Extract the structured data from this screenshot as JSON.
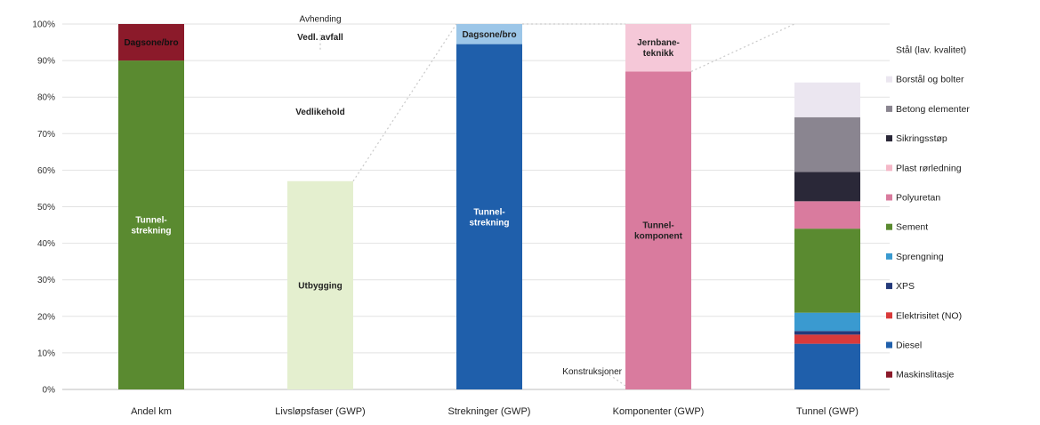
{
  "chart_data": {
    "type": "bar",
    "categories": [
      "Andel km",
      "Livsløpsfaser (GWP)",
      "Strekninger (GWP)",
      "Komponenter (GWP)",
      "Tunnel (GWP)"
    ],
    "ylim": [
      0,
      100
    ],
    "y_ticks": [
      "0%",
      "10%",
      "20%",
      "30%",
      "40%",
      "50%",
      "60%",
      "70%",
      "80%",
      "90%",
      "100%"
    ],
    "grid": true,
    "legend_position": "right",
    "bars": [
      {
        "category": "Andel km",
        "segments": [
          {
            "label": "Tunnel-\nstrekning",
            "from": 0,
            "to": 90,
            "color": "#5a8a30"
          },
          {
            "label": "Dagsone/bro",
            "from": 90,
            "to": 100,
            "color": "#8b1a2a"
          }
        ]
      },
      {
        "category": "Livsløpsfaser (GWP)",
        "segments": [
          {
            "label": "Utbygging",
            "from": 0,
            "to": 57,
            "color": "#e4efcf"
          }
        ]
      },
      {
        "category": "Strekninger (GWP)",
        "segments": [
          {
            "label": "Tunnel-\nstrekning",
            "from": 0,
            "to": 94.5,
            "color": "#1f5fab"
          },
          {
            "label": "Dagsone/bro",
            "from": 94.5,
            "to": 100,
            "color": "#9cc6e8"
          }
        ]
      },
      {
        "category": "Komponenter (GWP)",
        "segments": [
          {
            "label": "Tunnel-\nkomponent",
            "from": 0,
            "to": 87,
            "color": "#d97b9e"
          },
          {
            "label": "Jernbane-\nteknikk",
            "from": 87,
            "to": 100,
            "color": "#f5c8d8"
          }
        ]
      },
      {
        "category": "Tunnel (GWP)",
        "segments": [
          {
            "label": "Diesel",
            "from": 0,
            "to": 12.5,
            "color": "#1f5fab"
          },
          {
            "label": "Elektrisitet (NO)",
            "from": 12.5,
            "to": 15,
            "color": "#d93a3a"
          },
          {
            "label": "XPS",
            "from": 15,
            "to": 16,
            "color": "#243a7a"
          },
          {
            "label": "Sprengning",
            "from": 16,
            "to": 21,
            "color": "#3a9ad0"
          },
          {
            "label": "Sement",
            "from": 21,
            "to": 44,
            "color": "#5a8a30"
          },
          {
            "label": "Polyuretan",
            "from": 44,
            "to": 51.5,
            "color": "#d97b9e"
          },
          {
            "label": "Sikringsstøp",
            "from": 51.5,
            "to": 59.5,
            "color": "#2a2838"
          },
          {
            "label": "Betong elementer",
            "from": 59.5,
            "to": 74.5,
            "color": "#8a8590"
          },
          {
            "label": "Borstål og bolter",
            "from": 74.5,
            "to": 84,
            "color": "#ebe6f0"
          }
        ]
      }
    ],
    "annotations": [
      {
        "text": "Avhending",
        "level": 101.5
      },
      {
        "text": "Vedl. avfall",
        "level": 96.5
      },
      {
        "text": "Vedlikehold",
        "level": 76
      },
      {
        "text": "Konstruksjoner",
        "level": 5
      }
    ],
    "legend": [
      {
        "label": "Stål (lav. kvalitet)",
        "color": "#ffffff"
      },
      {
        "label": "Borstål og bolter",
        "color": "#ebe6f0"
      },
      {
        "label": "Betong elementer",
        "color": "#8a8590"
      },
      {
        "label": "Sikringsstøp",
        "color": "#2a2838"
      },
      {
        "label": "Plast rørledning",
        "color": "#f5b8c8"
      },
      {
        "label": "Polyuretan",
        "color": "#d97b9e"
      },
      {
        "label": "Sement",
        "color": "#5a8a30"
      },
      {
        "label": "Sprengning",
        "color": "#3a9ad0"
      },
      {
        "label": "XPS",
        "color": "#243a7a"
      },
      {
        "label": "Elektrisitet (NO)",
        "color": "#d93a3a"
      },
      {
        "label": "Diesel",
        "color": "#1f5fab"
      },
      {
        "label": "Maskinslitasje",
        "color": "#8b1a2a"
      }
    ]
  }
}
